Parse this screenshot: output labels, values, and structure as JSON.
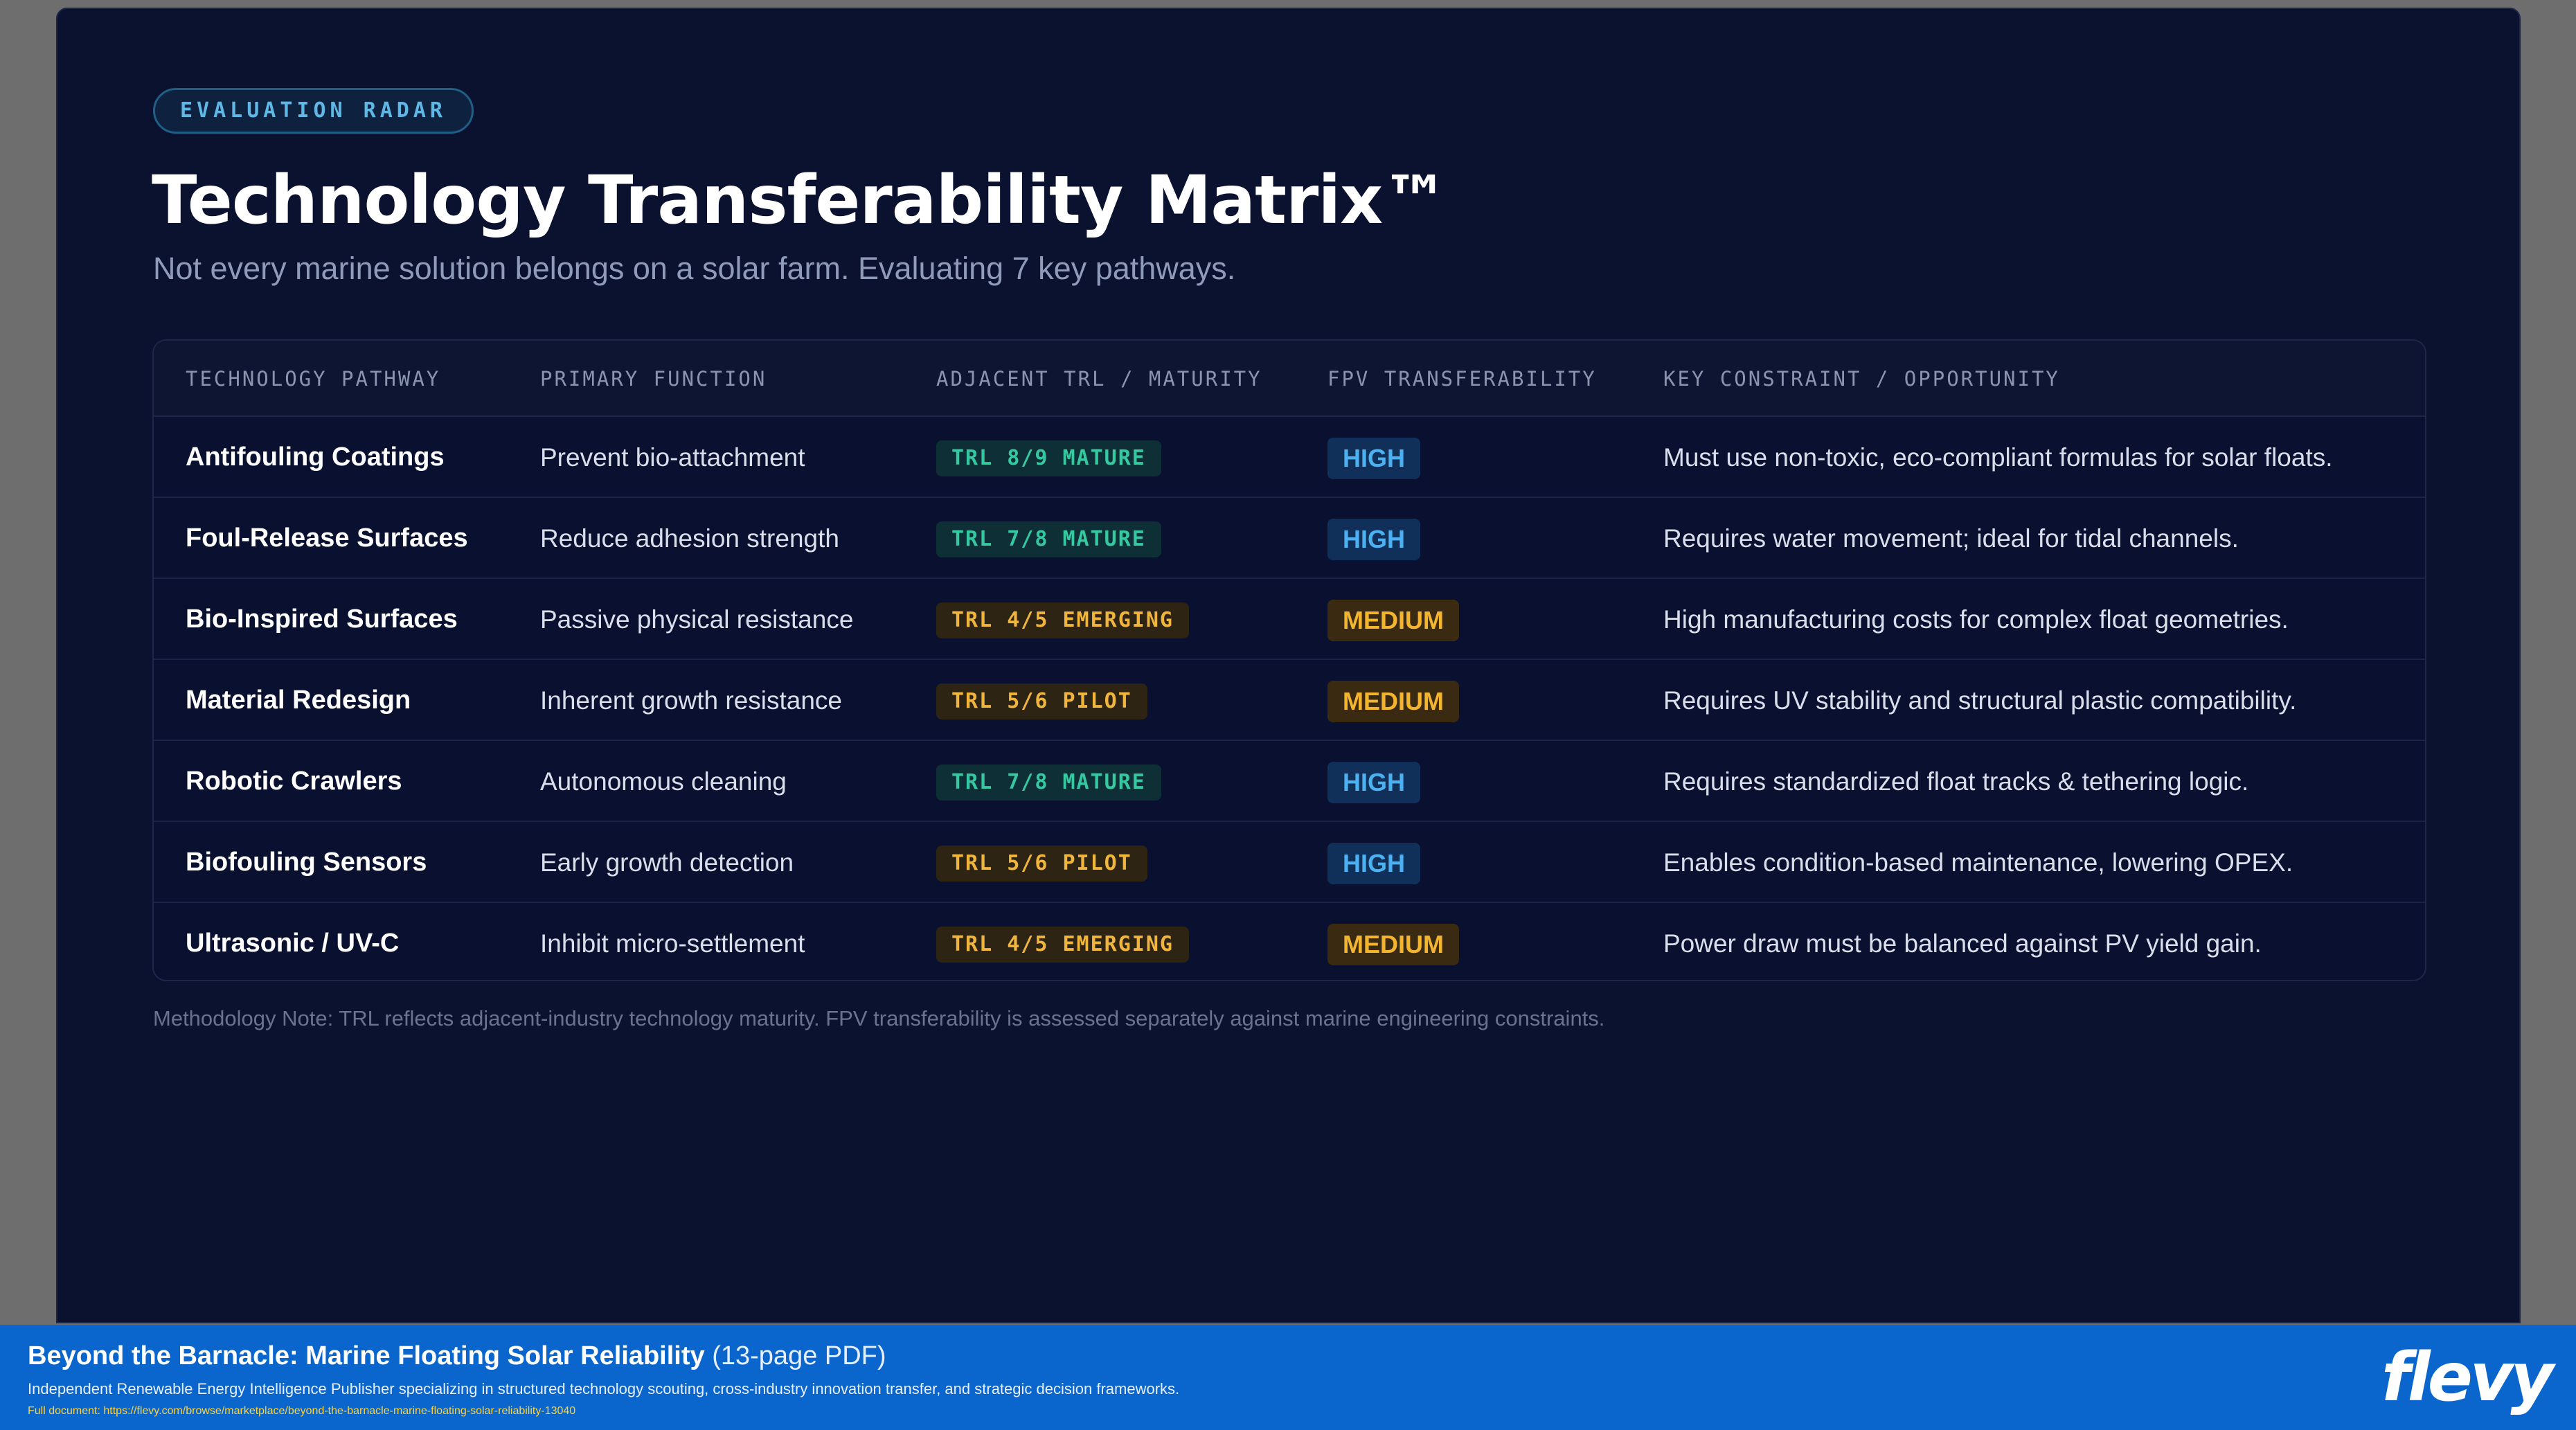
{
  "slide": {
    "badge": "EVALUATION RADAR",
    "title": "Technology Transferability Matrix™",
    "subtitle": "Not every marine solution belongs on a solar farm. Evaluating 7 key pathways.",
    "note": "Methodology Note: TRL reflects adjacent-industry technology maturity. FPV transferability is assessed separately against marine engineering constraints."
  },
  "table": {
    "headers": [
      "TECHNOLOGY PATHWAY",
      "PRIMARY FUNCTION",
      "ADJACENT TRL / MATURITY",
      "FPV TRANSFERABILITY",
      "KEY CONSTRAINT / OPPORTUNITY"
    ],
    "rows": [
      {
        "name": "Antifouling Coatings",
        "function": "Prevent bio-attachment",
        "trl": "TRL 8/9 MATURE",
        "trl_tone": "green",
        "fpv": "HIGH",
        "fpv_tone": "high",
        "constraint": "Must use non-toxic, eco-compliant formulas for solar floats."
      },
      {
        "name": "Foul-Release Surfaces",
        "function": "Reduce adhesion strength",
        "trl": "TRL 7/8 MATURE",
        "trl_tone": "green",
        "fpv": "HIGH",
        "fpv_tone": "high",
        "constraint": "Requires water movement; ideal for tidal channels."
      },
      {
        "name": "Bio-Inspired Surfaces",
        "function": "Passive physical resistance",
        "trl": "TRL 4/5 EMERGING",
        "trl_tone": "amber",
        "fpv": "MEDIUM",
        "fpv_tone": "medium",
        "constraint": "High manufacturing costs for complex float geometries."
      },
      {
        "name": "Material Redesign",
        "function": "Inherent growth resistance",
        "trl": "TRL 5/6 PILOT",
        "trl_tone": "amber",
        "fpv": "MEDIUM",
        "fpv_tone": "medium",
        "constraint": "Requires UV stability and structural plastic compatibility."
      },
      {
        "name": "Robotic Crawlers",
        "function": "Autonomous cleaning",
        "trl": "TRL 7/8 MATURE",
        "trl_tone": "green",
        "fpv": "HIGH",
        "fpv_tone": "high",
        "constraint": "Requires standardized float tracks & tethering logic."
      },
      {
        "name": "Biofouling Sensors",
        "function": "Early growth detection",
        "trl": "TRL 5/6 PILOT",
        "trl_tone": "amber",
        "fpv": "HIGH",
        "fpv_tone": "high",
        "constraint": "Enables condition-based maintenance, lowering OPEX."
      },
      {
        "name": "Ultrasonic / UV-C",
        "function": "Inhibit micro-settlement",
        "trl": "TRL 4/5 EMERGING",
        "trl_tone": "amber",
        "fpv": "MEDIUM",
        "fpv_tone": "medium",
        "constraint": "Power draw must be balanced against PV yield gain."
      }
    ]
  },
  "footer": {
    "title": "Beyond the Barnacle: Marine Floating Solar Reliability",
    "pages": "(13-page PDF)",
    "description": "Independent Renewable Energy Intelligence Publisher specializing in structured technology scouting, cross-industry innovation transfer, and strategic decision frameworks.",
    "url": "Full document: https://flevy.com/browse/marketplace/beyond-the-barnacle-marine-floating-solar-reliability-13040",
    "logo": "flevy"
  },
  "colors": {
    "slide_bg": "#0b1230",
    "accent_blue": "#4cb1f0",
    "accent_green": "#34c9a0",
    "accent_amber": "#f3b52e",
    "footer_bg": "#0a66cc"
  }
}
